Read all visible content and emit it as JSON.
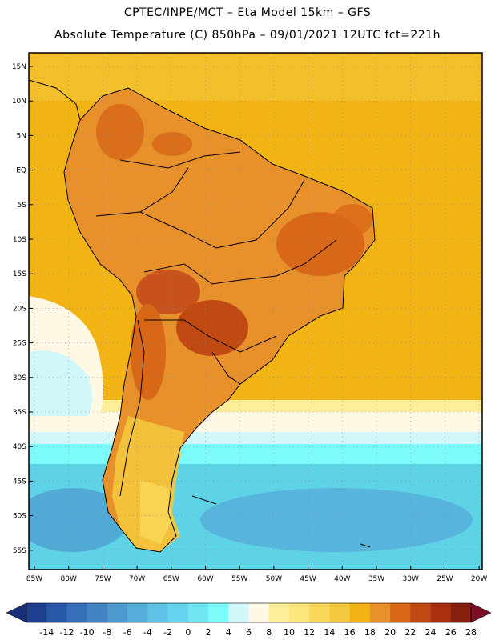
{
  "header": {
    "title_line1": "CPTEC/INPE/MCT –   Eta Model 15km – GFS",
    "title_line2": "Absolute Temperature (C) 850hPa – 09/01/2021 12UTC fct=221h"
  },
  "map": {
    "lat_labels": [
      "15N",
      "10N",
      "5N",
      "EQ",
      "5S",
      "10S",
      "15S",
      "20S",
      "25S",
      "30S",
      "35S",
      "40S",
      "45S",
      "50S",
      "55S"
    ],
    "lon_labels": [
      "85W",
      "80W",
      "75W",
      "70W",
      "65W",
      "60W",
      "55W",
      "50W",
      "45W",
      "40W",
      "35W",
      "30W",
      "25W",
      "20W"
    ],
    "background_color": "#f2b414",
    "land_warm_color": "#e8902a",
    "hot_color": "#c8521c",
    "cold_sea_color": "#5fd3e6",
    "gridline_style": "dotted"
  },
  "colorbar": {
    "labels": [
      "-14",
      "-12",
      "-10",
      "-8",
      "-6",
      "-4",
      "-2",
      "0",
      "2",
      "4",
      "6",
      "8",
      "10",
      "12",
      "14",
      "16",
      "18",
      "20",
      "22",
      "24",
      "26",
      "28"
    ],
    "colors": [
      "#1f3f8f",
      "#2a58a8",
      "#3770b8",
      "#4285c4",
      "#4b99cf",
      "#55addb",
      "#5fc1e5",
      "#66d3ee",
      "#70e6f5",
      "#7dfbfb",
      "#d2f7fb",
      "#fff8e4",
      "#ffee99",
      "#fde67b",
      "#f9d85c",
      "#f4c83c",
      "#f2b414",
      "#e8902a",
      "#d86818",
      "#c04a12",
      "#a8300e",
      "#882010"
    ],
    "under_color": "#1a2f7a",
    "over_color": "#7a0e24"
  }
}
